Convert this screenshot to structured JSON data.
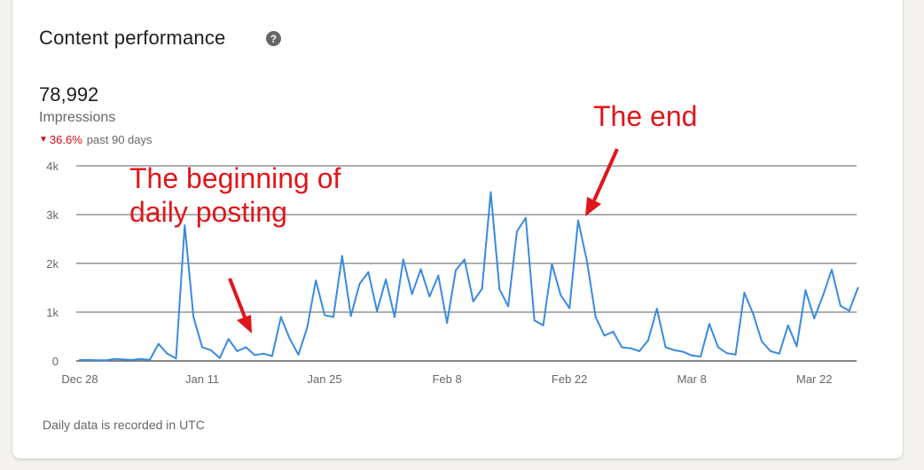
{
  "card": {
    "title": "Content performance",
    "help_icon": "question-circle-icon",
    "total": "78,992",
    "metric_label": "Impressions",
    "change_value": "36.6%",
    "change_direction": "down",
    "change_period": "past 90 days",
    "footnote": "Daily data is recorded in UTC"
  },
  "annotations": {
    "beginning_line1": "The beginning of",
    "beginning_line2": "daily posting",
    "end": "The end"
  },
  "colors": {
    "line": "#3a8ae0",
    "annotation": "#e0161a",
    "negative": "#cc1016",
    "grid": "#5e5e5e"
  },
  "chart_data": {
    "type": "line",
    "xlabel": "",
    "ylabel": "",
    "ylim": [
      0,
      4000
    ],
    "y_ticks": [
      0,
      1000,
      2000,
      3000,
      4000
    ],
    "y_tick_labels": [
      "0",
      "1k",
      "2k",
      "3k",
      "4k"
    ],
    "x_tick_labels": [
      "Dec 28",
      "Jan 11",
      "Jan 25",
      "Feb 8",
      "Feb 22",
      "Mar 8",
      "Mar 22"
    ],
    "x_tick_days": [
      0,
      14,
      28,
      42,
      56,
      70,
      84
    ],
    "grid": true,
    "series": [
      {
        "values": [
          20,
          20,
          15,
          15,
          40,
          30,
          20,
          40,
          20,
          350,
          150,
          50,
          2780,
          900,
          280,
          220,
          60,
          450,
          200,
          280,
          120,
          150,
          100,
          900,
          460,
          130,
          680,
          1650,
          940,
          900,
          2150,
          920,
          1580,
          1820,
          1020,
          1670,
          900,
          2080,
          1370,
          1880,
          1320,
          1750,
          780,
          1860,
          2080,
          1220,
          1480,
          3460,
          1470,
          1120,
          2660,
          2930,
          830,
          730,
          1990,
          1350,
          1080,
          2880,
          2050,
          900,
          520,
          600,
          280,
          260,
          200,
          420,
          1070,
          280,
          220,
          190,
          110,
          90,
          760,
          280,
          160,
          130,
          1400,
          970,
          400,
          200,
          150,
          730,
          300,
          1450,
          870,
          1340,
          1870,
          1130,
          1030,
          1500
        ]
      }
    ]
  }
}
